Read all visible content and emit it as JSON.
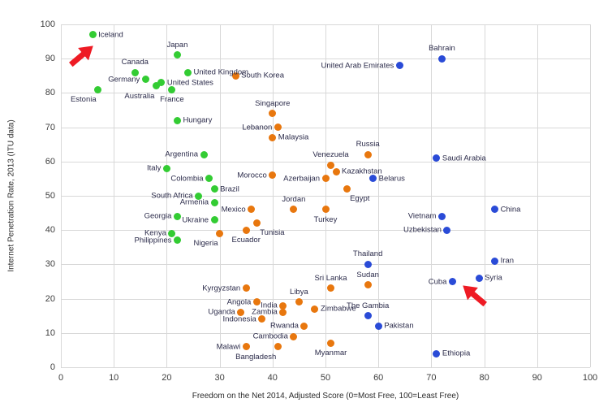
{
  "chart_data": {
    "type": "scatter",
    "title": "",
    "xlabel": "Freedom on the Net 2014, Adjusted Score (0=Most Free, 100=Least Free)",
    "ylabel": "Internet Penetration Rate, 2013 (ITU data)",
    "xlim": [
      0,
      100
    ],
    "ylim": [
      0,
      100
    ],
    "xticks": [
      0,
      10,
      20,
      30,
      40,
      50,
      60,
      70,
      80,
      90,
      100
    ],
    "yticks": [
      0,
      10,
      20,
      30,
      40,
      50,
      60,
      70,
      80,
      90,
      100
    ],
    "grid": true,
    "legend": "none",
    "colors": {
      "free_green": "#33cc33",
      "partly_orange": "#e8770e",
      "notfree_blue": "#2a4bd7",
      "arrow_red": "#ee1b24",
      "grid_line": "#d8d8d8",
      "label_text": "#2b2b4a"
    },
    "series": [
      {
        "name": "green",
        "color_key": "free_green",
        "points": [
          {
            "label": "Iceland",
            "x": 6,
            "y": 97,
            "side": "right"
          },
          {
            "label": "Estonia",
            "x": 7,
            "y": 81,
            "side": "bottom-left"
          },
          {
            "label": "Canada",
            "x": 14,
            "y": 86,
            "side": "top"
          },
          {
            "label": "Germany",
            "x": 16,
            "y": 84,
            "side": "left"
          },
          {
            "label": "Australia",
            "x": 18,
            "y": 82,
            "side": "bottom-left"
          },
          {
            "label": "Japan",
            "x": 22,
            "y": 91,
            "side": "top"
          },
          {
            "label": "United Kingdom",
            "x": 24,
            "y": 86,
            "side": "right"
          },
          {
            "label": "United States",
            "x": 19,
            "y": 83,
            "side": "right"
          },
          {
            "label": "France",
            "x": 21,
            "y": 81,
            "side": "bottom"
          },
          {
            "label": "Hungary",
            "x": 22,
            "y": 72,
            "side": "right"
          },
          {
            "label": "Italy",
            "x": 20,
            "y": 58,
            "side": "left"
          },
          {
            "label": "Argentina",
            "x": 27,
            "y": 62,
            "side": "left"
          },
          {
            "label": "Colombia",
            "x": 28,
            "y": 55,
            "side": "left"
          },
          {
            "label": "Brazil",
            "x": 29,
            "y": 52,
            "side": "right"
          },
          {
            "label": "South Africa",
            "x": 26,
            "y": 50,
            "side": "left"
          },
          {
            "label": "Armenia",
            "x": 29,
            "y": 48,
            "side": "left"
          },
          {
            "label": "Georgia",
            "x": 22,
            "y": 44,
            "side": "left"
          },
          {
            "label": "Ukraine",
            "x": 29,
            "y": 43,
            "side": "left"
          },
          {
            "label": "Kenya",
            "x": 21,
            "y": 39,
            "side": "left"
          },
          {
            "label": "Philippines",
            "x": 22,
            "y": 37,
            "side": "left"
          }
        ]
      },
      {
        "name": "orange",
        "color_key": "partly_orange",
        "points": [
          {
            "label": "South Korea",
            "x": 33,
            "y": 85,
            "side": "right"
          },
          {
            "label": "Singapore",
            "x": 40,
            "y": 74,
            "side": "top"
          },
          {
            "label": "Lebanon",
            "x": 41,
            "y": 70,
            "side": "left"
          },
          {
            "label": "Malaysia",
            "x": 40,
            "y": 67,
            "side": "right"
          },
          {
            "label": "Russia",
            "x": 58,
            "y": 62,
            "side": "top"
          },
          {
            "label": "Venezuela",
            "x": 51,
            "y": 59,
            "side": "top"
          },
          {
            "label": "Morocco",
            "x": 40,
            "y": 56,
            "side": "left"
          },
          {
            "label": "Kazakhstan",
            "x": 52,
            "y": 57,
            "side": "right"
          },
          {
            "label": "Azerbaijan",
            "x": 50,
            "y": 55,
            "side": "left"
          },
          {
            "label": "Egypt",
            "x": 54,
            "y": 52,
            "side": "bottom-right"
          },
          {
            "label": "Mexico",
            "x": 36,
            "y": 46,
            "side": "left"
          },
          {
            "label": "Jordan",
            "x": 44,
            "y": 46,
            "side": "top"
          },
          {
            "label": "Turkey",
            "x": 50,
            "y": 46,
            "side": "bottom"
          },
          {
            "label": "Tunisia",
            "x": 37,
            "y": 42,
            "side": "bottom-right"
          },
          {
            "label": "Ecuador",
            "x": 35,
            "y": 40,
            "side": "bottom"
          },
          {
            "label": "Nigeria",
            "x": 30,
            "y": 39,
            "side": "bottom-left"
          },
          {
            "label": "Kyrgyzstan",
            "x": 35,
            "y": 23,
            "side": "left"
          },
          {
            "label": "Sri Lanka",
            "x": 51,
            "y": 23,
            "side": "top"
          },
          {
            "label": "Sudan",
            "x": 58,
            "y": 24,
            "side": "top"
          },
          {
            "label": "Angola",
            "x": 37,
            "y": 19,
            "side": "left"
          },
          {
            "label": "India",
            "x": 42,
            "y": 18,
            "side": "left"
          },
          {
            "label": "Libya",
            "x": 45,
            "y": 19,
            "side": "top"
          },
          {
            "label": "Zimbabwe",
            "x": 48,
            "y": 17,
            "side": "right"
          },
          {
            "label": "Uganda",
            "x": 34,
            "y": 16,
            "side": "left"
          },
          {
            "label": "Indonesia",
            "x": 38,
            "y": 14,
            "side": "left"
          },
          {
            "label": "Zambia",
            "x": 42,
            "y": 16,
            "side": "left"
          },
          {
            "label": "Rwanda",
            "x": 46,
            "y": 12,
            "side": "left"
          },
          {
            "label": "Cambodia",
            "x": 44,
            "y": 9,
            "side": "left"
          },
          {
            "label": "Malawi",
            "x": 35,
            "y": 6,
            "side": "left"
          },
          {
            "label": "Bangladesh",
            "x": 41,
            "y": 6,
            "side": "bottom-left"
          },
          {
            "label": "Myanmar",
            "x": 51,
            "y": 7,
            "side": "bottom"
          }
        ]
      },
      {
        "name": "blue",
        "color_key": "notfree_blue",
        "points": [
          {
            "label": "Bahrain",
            "x": 72,
            "y": 90,
            "side": "top"
          },
          {
            "label": "United Arab Emirates",
            "x": 64,
            "y": 88,
            "side": "left"
          },
          {
            "label": "Saudi Arabia",
            "x": 71,
            "y": 61,
            "side": "right"
          },
          {
            "label": "Belarus",
            "x": 59,
            "y": 55,
            "side": "right"
          },
          {
            "label": "China",
            "x": 82,
            "y": 46,
            "side": "right"
          },
          {
            "label": "Vietnam",
            "x": 72,
            "y": 44,
            "side": "left"
          },
          {
            "label": "Uzbekistan",
            "x": 73,
            "y": 40,
            "side": "left"
          },
          {
            "label": "Iran",
            "x": 82,
            "y": 31,
            "side": "right"
          },
          {
            "label": "Thailand",
            "x": 58,
            "y": 30,
            "side": "top"
          },
          {
            "label": "Syria",
            "x": 79,
            "y": 26,
            "side": "right"
          },
          {
            "label": "Cuba",
            "x": 74,
            "y": 25,
            "side": "left"
          },
          {
            "label": "The Gambia",
            "x": 58,
            "y": 15,
            "side": "top"
          },
          {
            "label": "Pakistan",
            "x": 60,
            "y": 12,
            "side": "right"
          },
          {
            "label": "Ethiopia",
            "x": 71,
            "y": 4,
            "side": "right"
          }
        ]
      }
    ],
    "annotations": [
      {
        "name": "red-arrow-iceland",
        "points_at": "Iceland",
        "x": 4,
        "y": 91,
        "angle_deg": -40
      },
      {
        "name": "red-arrow-cuba",
        "points_at": "Cuba",
        "x": 78,
        "y": 21,
        "angle_deg": -140
      }
    ]
  }
}
